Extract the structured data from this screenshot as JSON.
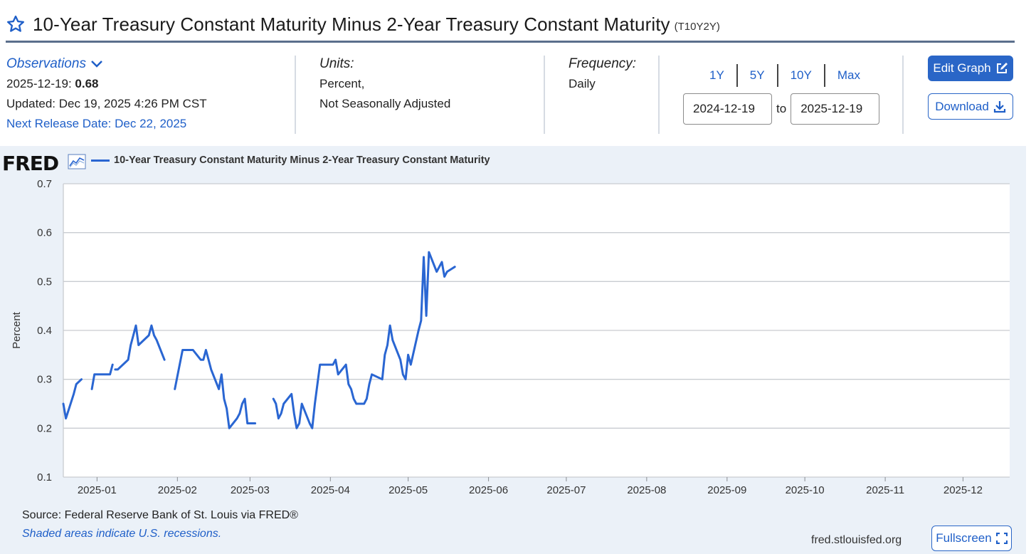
{
  "header": {
    "title": "10-Year Treasury Constant Maturity Minus 2-Year Treasury Constant Maturity",
    "series_id": "(T10Y2Y)"
  },
  "observations": {
    "label": "Observations",
    "date": "2025-12-19:",
    "value": "0.68",
    "updated": "Updated: Dec 19, 2025 4:26 PM CST",
    "next_release": "Next Release Date: Dec 22, 2025"
  },
  "units": {
    "label": "Units:",
    "line1": "Percent,",
    "line2": "Not Seasonally Adjusted"
  },
  "frequency": {
    "label": "Frequency:",
    "value": "Daily"
  },
  "range_buttons": [
    "1Y",
    "5Y",
    "10Y",
    "Max"
  ],
  "date_range": {
    "start": "2024-12-19",
    "to": "to",
    "end": "2025-12-19"
  },
  "buttons": {
    "edit": "Edit Graph",
    "download": "Download",
    "fullscreen": "Fullscreen"
  },
  "graph": {
    "logo": "FRED",
    "source": "Source: Federal Reserve Bank of St. Louis via FRED®",
    "shaded_note": "Shaded areas indicate U.S. recessions.",
    "url": "fred.stlouisfed.org"
  },
  "colors": {
    "accent": "#2a66c7",
    "series": "#2a66d2",
    "panel_bg": "#ebf1f8",
    "link": "#1f5fc8"
  },
  "chart_data": {
    "type": "line",
    "legend": "10-Year Treasury Constant Maturity Minus 2-Year Treasury Constant Maturity",
    "ylabel": "Percent",
    "xlabel": "",
    "ylim": [
      0.1,
      0.7
    ],
    "yticks": [
      "0.1",
      "0.2",
      "0.3",
      "0.4",
      "0.5",
      "0.6",
      "0.7"
    ],
    "xlim": [
      "2024-12-19",
      "2025-12-19"
    ],
    "xticks": [
      "2025-01",
      "2025-02",
      "2025-03",
      "2025-04",
      "2025-05",
      "2025-06",
      "2025-07",
      "2025-08",
      "2025-09",
      "2025-10",
      "2025-11",
      "2025-12"
    ],
    "grid": true,
    "series": [
      {
        "name": "T10Y2Y",
        "segments": [
          [
            [
              "2024-12-19",
              0.25
            ],
            [
              "2024-12-20",
              0.22
            ],
            [
              "2024-12-23",
              0.27
            ],
            [
              "2024-12-24",
              0.29
            ],
            [
              "2024-12-26",
              0.3
            ]
          ],
          [
            [
              "2024-12-30",
              0.28
            ],
            [
              "2024-12-31",
              0.31
            ],
            [
              "2025-01-03",
              0.31
            ],
            [
              "2025-01-06",
              0.31
            ],
            [
              "2025-01-07",
              0.33
            ]
          ],
          [
            [
              "2025-01-08",
              0.32
            ],
            [
              "2025-01-09",
              0.32
            ],
            [
              "2025-01-13",
              0.34
            ],
            [
              "2025-01-14",
              0.37
            ],
            [
              "2025-01-15",
              0.39
            ],
            [
              "2025-01-16",
              0.41
            ],
            [
              "2025-01-17",
              0.37
            ],
            [
              "2025-01-21",
              0.39
            ],
            [
              "2025-01-22",
              0.41
            ],
            [
              "2025-01-23",
              0.39
            ],
            [
              "2025-01-24",
              0.38
            ],
            [
              "2025-01-27",
              0.34
            ]
          ],
          [
            [
              "2025-01-31",
              0.28
            ],
            [
              "2025-02-03",
              0.36
            ],
            [
              "2025-02-04",
              0.36
            ],
            [
              "2025-02-05",
              0.36
            ],
            [
              "2025-02-06",
              0.36
            ],
            [
              "2025-02-07",
              0.36
            ],
            [
              "2025-02-10",
              0.34
            ],
            [
              "2025-02-11",
              0.34
            ],
            [
              "2025-02-12",
              0.36
            ],
            [
              "2025-02-13",
              0.34
            ],
            [
              "2025-02-14",
              0.32
            ],
            [
              "2025-02-17",
              0.28
            ],
            [
              "2025-02-18",
              0.31
            ],
            [
              "2025-02-19",
              0.26
            ],
            [
              "2025-02-20",
              0.24
            ],
            [
              "2025-02-21",
              0.2
            ],
            [
              "2025-02-24",
              0.22
            ],
            [
              "2025-02-25",
              0.23
            ],
            [
              "2025-02-26",
              0.25
            ],
            [
              "2025-02-27",
              0.26
            ],
            [
              "2025-02-28",
              0.21
            ],
            [
              "2025-03-03",
              0.21
            ]
          ],
          [
            [
              "2025-03-10",
              0.26
            ],
            [
              "2025-03-11",
              0.25
            ],
            [
              "2025-03-12",
              0.22
            ],
            [
              "2025-03-13",
              0.23
            ],
            [
              "2025-03-14",
              0.25
            ],
            [
              "2025-03-17",
              0.27
            ],
            [
              "2025-03-18",
              0.23
            ],
            [
              "2025-03-19",
              0.2
            ],
            [
              "2025-03-20",
              0.21
            ],
            [
              "2025-03-21",
              0.25
            ],
            [
              "2025-03-24",
              0.21
            ],
            [
              "2025-03-25",
              0.2
            ],
            [
              "2025-03-26",
              0.25
            ],
            [
              "2025-03-27",
              0.29
            ],
            [
              "2025-03-28",
              0.33
            ],
            [
              "2025-03-31",
              0.33
            ],
            [
              "2025-04-01",
              0.33
            ],
            [
              "2025-04-02",
              0.33
            ],
            [
              "2025-04-03",
              0.34
            ],
            [
              "2025-04-04",
              0.31
            ],
            [
              "2025-04-07",
              0.33
            ],
            [
              "2025-04-08",
              0.29
            ],
            [
              "2025-04-09",
              0.28
            ],
            [
              "2025-04-10",
              0.26
            ],
            [
              "2025-04-11",
              0.25
            ],
            [
              "2025-04-14",
              0.25
            ],
            [
              "2025-04-15",
              0.26
            ],
            [
              "2025-04-16",
              0.29
            ],
            [
              "2025-04-17",
              0.31
            ],
            [
              "2025-04-21",
              0.3
            ],
            [
              "2025-04-22",
              0.35
            ],
            [
              "2025-04-23",
              0.37
            ],
            [
              "2025-04-24",
              0.41
            ],
            [
              "2025-04-25",
              0.38
            ],
            [
              "2025-04-28",
              0.34
            ],
            [
              "2025-04-29",
              0.31
            ],
            [
              "2025-04-30",
              0.3
            ],
            [
              "2025-05-01",
              0.35
            ],
            [
              "2025-05-02",
              0.33
            ],
            [
              "2025-05-05",
              0.4
            ],
            [
              "2025-05-06",
              0.42
            ],
            [
              "2025-05-07",
              0.55
            ],
            [
              "2025-05-08",
              0.43
            ],
            [
              "2025-05-09",
              0.56
            ],
            [
              "2025-05-12",
              0.52
            ],
            [
              "2025-05-13",
              0.53
            ],
            [
              "2025-05-14",
              0.54
            ],
            [
              "2025-05-15",
              0.51
            ],
            [
              "2025-05-16",
              0.52
            ],
            [
              "2025-05-19",
              0.53
            ]
          ]
        ],
        "last_value": 0.68
      }
    ]
  }
}
